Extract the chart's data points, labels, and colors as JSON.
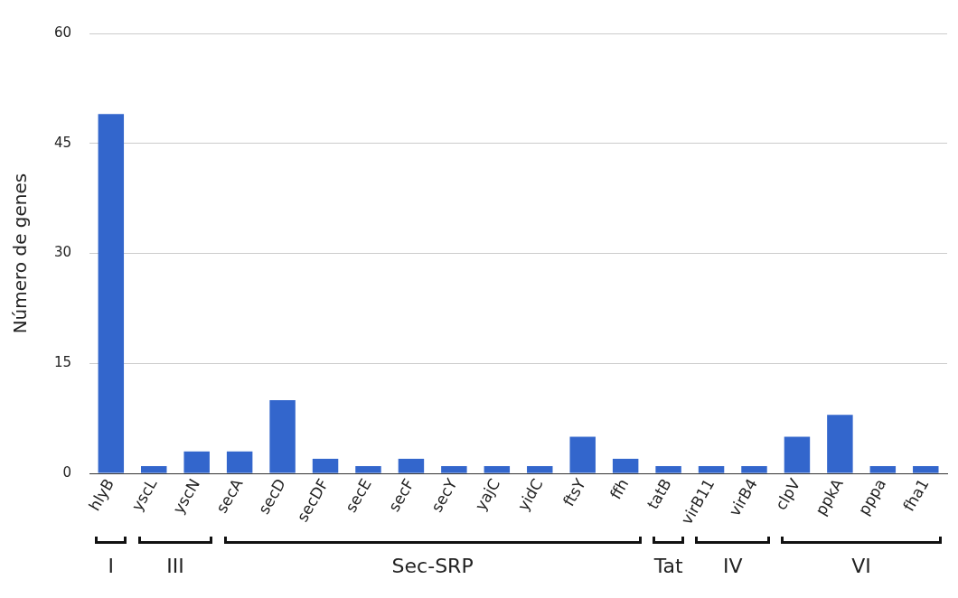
{
  "chart_data": {
    "type": "bar",
    "ylabel": "Número de genes",
    "categories": [
      "hlyB",
      "yscL",
      "yscN",
      "secA",
      "secD",
      "secDF",
      "secE",
      "secF",
      "secY",
      "yajC",
      "yidC",
      "ftsY",
      "ffh",
      "tatB",
      "virB11",
      "virB4",
      "clpV",
      "ppkA",
      "pppa",
      "fha1"
    ],
    "values": [
      49,
      1,
      3,
      3,
      10,
      2,
      1,
      2,
      1,
      1,
      1,
      5,
      2,
      1,
      1,
      1,
      5,
      8,
      1,
      1
    ],
    "color": "#3366cc",
    "ylim": [
      0,
      60
    ],
    "yticks": [
      0,
      15,
      30,
      45,
      60
    ],
    "grid": "y",
    "legend": false,
    "annotations": [
      "I",
      "III",
      "Sec-SRP",
      "Tat",
      "IV",
      "VI"
    ]
  }
}
